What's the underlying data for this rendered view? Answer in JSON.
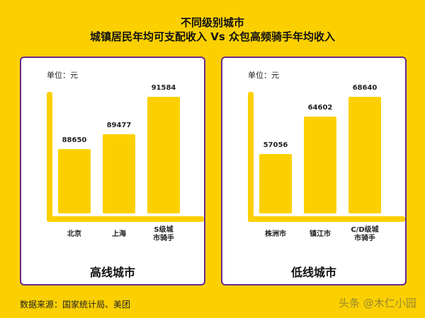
{
  "title_line1": "不同级别城市",
  "title_line2": "城镇居民年均可支配收入 Vs 众包高频骑手年均收入",
  "source": "数据来源：国家统计局、美团",
  "watermark": "头条 @木仁小园",
  "chart_data": [
    {
      "type": "bar",
      "title": "高线城市",
      "unit_label": "单位：元",
      "categories": [
        "北京",
        "上海",
        "S级城市骑手"
      ],
      "values": [
        88650,
        89477,
        91584
      ],
      "ylim": [
        85000,
        92000
      ],
      "color": "#fcd000"
    },
    {
      "type": "bar",
      "title": "低线城市",
      "unit_label": "单位：元",
      "categories": [
        "株洲市",
        "镇江市",
        "C/D级城市骑手"
      ],
      "values": [
        57056,
        64602,
        68640
      ],
      "ylim": [
        45000,
        70000
      ],
      "color": "#fcd000"
    }
  ]
}
